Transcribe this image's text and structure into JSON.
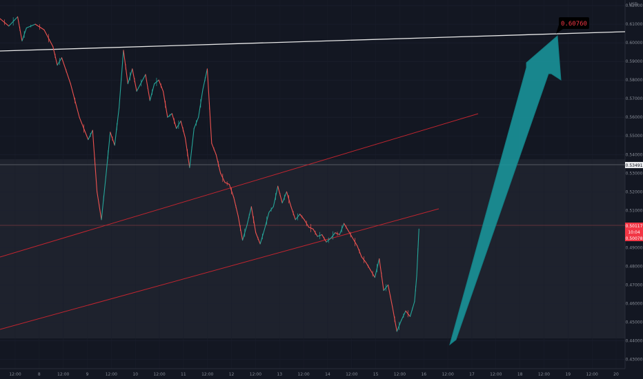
{
  "chart_data": {
    "type": "line",
    "currency": "USD",
    "x_ticks": [
      "12:00",
      "8",
      "12:00",
      "9",
      "12:00",
      "10",
      "12:00",
      "11",
      "12:00",
      "12",
      "12:00",
      "13",
      "12:00",
      "14",
      "12:00",
      "15",
      "12:00",
      "16",
      "12:00",
      "17",
      "12:00",
      "18",
      "12:00",
      "19",
      "12:00",
      "20"
    ],
    "y_ticks": [
      "0.62000",
      "0.61000",
      "0.60000",
      "0.59000",
      "0.58000",
      "0.57000",
      "0.56000",
      "0.55000",
      "0.54000",
      "0.53000",
      "0.52000",
      "0.51000",
      "0.50000",
      "0.49000",
      "0.48000",
      "0.47000",
      "0.46000",
      "0.45000",
      "0.44000",
      "0.43000"
    ],
    "ylim": [
      0.425,
      0.623
    ],
    "xlim": [
      0,
      102
    ],
    "series": [
      {
        "values": [
          [
            0,
            0.613
          ],
          [
            2,
            0.609
          ],
          [
            4,
            0.614
          ],
          [
            5,
            0.601
          ],
          [
            6,
            0.608
          ],
          [
            8,
            0.61
          ],
          [
            10,
            0.607
          ],
          [
            12,
            0.598
          ],
          [
            13,
            0.588
          ],
          [
            14,
            0.592
          ],
          [
            16,
            0.578
          ],
          [
            18,
            0.56
          ],
          [
            20,
            0.548
          ],
          [
            21,
            0.553
          ],
          [
            22,
            0.52
          ],
          [
            23,
            0.505
          ],
          [
            24,
            0.528
          ],
          [
            25,
            0.552
          ],
          [
            26,
            0.545
          ],
          [
            27,
            0.565
          ],
          [
            28,
            0.596
          ],
          [
            29,
            0.578
          ],
          [
            30,
            0.586
          ],
          [
            31,
            0.574
          ],
          [
            33,
            0.583
          ],
          [
            34,
            0.569
          ],
          [
            35,
            0.578
          ],
          [
            36,
            0.58
          ],
          [
            37,
            0.574
          ],
          [
            38,
            0.56
          ],
          [
            39,
            0.562
          ],
          [
            40,
            0.554
          ],
          [
            41,
            0.558
          ],
          [
            42,
            0.549
          ],
          [
            43,
            0.533
          ],
          [
            44,
            0.554
          ],
          [
            45,
            0.56
          ],
          [
            46,
            0.575
          ],
          [
            47,
            0.586
          ],
          [
            48,
            0.546
          ],
          [
            49,
            0.54
          ],
          [
            50,
            0.53
          ],
          [
            51,
            0.525
          ],
          [
            52,
            0.524
          ],
          [
            53,
            0.517
          ],
          [
            54,
            0.507
          ],
          [
            55,
            0.494
          ],
          [
            56,
            0.502
          ],
          [
            57,
            0.512
          ],
          [
            58,
            0.498
          ],
          [
            59,
            0.492
          ],
          [
            60,
            0.5
          ],
          [
            61,
            0.509
          ],
          [
            62,
            0.512
          ],
          [
            63,
            0.523
          ],
          [
            64,
            0.514
          ],
          [
            65,
            0.52
          ],
          [
            66,
            0.512
          ],
          [
            67,
            0.505
          ],
          [
            68,
            0.508
          ],
          [
            69,
            0.505
          ],
          [
            70,
            0.501
          ],
          [
            71,
            0.5
          ],
          [
            72,
            0.496
          ],
          [
            73,
            0.497
          ],
          [
            74,
            0.493
          ],
          [
            75,
            0.495
          ],
          [
            76,
            0.498
          ],
          [
            77,
            0.497
          ],
          [
            78,
            0.503
          ],
          [
            79,
            0.499
          ],
          [
            80,
            0.495
          ],
          [
            81,
            0.491
          ],
          [
            82,
            0.485
          ],
          [
            83,
            0.482
          ],
          [
            84,
            0.478
          ],
          [
            85,
            0.474
          ],
          [
            86,
            0.484
          ],
          [
            87,
            0.467
          ],
          [
            88,
            0.47
          ],
          [
            89,
            0.458
          ],
          [
            90,
            0.445
          ],
          [
            91,
            0.451
          ],
          [
            92,
            0.456
          ],
          [
            93,
            0.453
          ],
          [
            94,
            0.461
          ],
          [
            94.5,
            0.475
          ],
          [
            95,
            0.5
          ]
        ]
      }
    ],
    "annotations": {
      "resistance_price": "0.60760",
      "tag_upper": "0.53491",
      "tag_price": "0.50117",
      "tag_time": "10:04",
      "tag_lower": "0.50078"
    }
  }
}
